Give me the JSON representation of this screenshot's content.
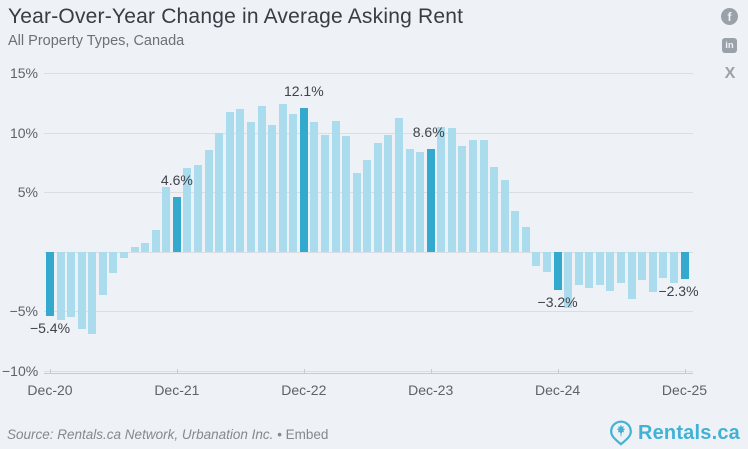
{
  "header": {
    "title": "Year-Over-Year Change in Average Asking Rent",
    "subtitle": "All Property Types, Canada"
  },
  "social": {
    "facebook_glyph": "f",
    "linkedin_glyph": "in",
    "x_glyph": "X"
  },
  "chart_data": {
    "type": "bar",
    "title": "Year-Over-Year Change in Average Asking Rent",
    "subtitle": "All Property Types, Canada",
    "xlabel": "",
    "ylabel": "",
    "ylim": [
      -10,
      15
    ],
    "grid": true,
    "bar_color": "#aadcee",
    "highlight_color": "#33a9cd",
    "x": [
      "Dec-20",
      "Jan-21",
      "Feb-21",
      "Mar-21",
      "Apr-21",
      "May-21",
      "Jun-21",
      "Jul-21",
      "Aug-21",
      "Sep-21",
      "Oct-21",
      "Nov-21",
      "Dec-21",
      "Jan-22",
      "Feb-22",
      "Mar-22",
      "Apr-22",
      "May-22",
      "Jun-22",
      "Jul-22",
      "Aug-22",
      "Sep-22",
      "Oct-22",
      "Nov-22",
      "Dec-22",
      "Jan-23",
      "Feb-23",
      "Mar-23",
      "Apr-23",
      "May-23",
      "Jun-23",
      "Jul-23",
      "Aug-23",
      "Sep-23",
      "Oct-23",
      "Nov-23",
      "Dec-23",
      "Jan-24",
      "Feb-24",
      "Mar-24",
      "Apr-24",
      "May-24",
      "Jun-24",
      "Jul-24",
      "Aug-24",
      "Sep-24",
      "Oct-24",
      "Nov-24",
      "Dec-24",
      "Jan-25",
      "Feb-25",
      "Mar-25",
      "Apr-25",
      "May-25",
      "Jun-25",
      "Jul-25",
      "Aug-25",
      "Sep-25",
      "Oct-25",
      "Nov-25",
      "Dec-25"
    ],
    "values": [
      -5.4,
      -5.7,
      -5.5,
      -6.5,
      -6.9,
      -3.6,
      -1.8,
      -0.5,
      0.4,
      0.7,
      1.8,
      5.4,
      4.6,
      7.0,
      7.3,
      8.5,
      10.0,
      11.7,
      12.0,
      10.9,
      12.2,
      10.6,
      12.4,
      11.6,
      12.1,
      10.9,
      9.8,
      11.0,
      9.7,
      6.6,
      7.7,
      9.1,
      9.8,
      11.2,
      8.6,
      8.4,
      8.6,
      10.5,
      10.4,
      8.9,
      9.4,
      9.4,
      7.1,
      6.0,
      3.4,
      2.1,
      -1.2,
      -1.7,
      -3.2,
      -4.7,
      -2.8,
      -3.0,
      -2.8,
      -3.3,
      -2.6,
      -4.0,
      -2.4,
      -3.4,
      -2.2,
      -2.6,
      -2.3
    ],
    "highlighted_indices": [
      0,
      12,
      24,
      36,
      48,
      60
    ],
    "data_labels": [
      {
        "index": 0,
        "text": "−5.4%",
        "dx": 0
      },
      {
        "index": 12,
        "text": "4.6%",
        "dx": 0
      },
      {
        "index": 24,
        "text": "12.1%",
        "dx": 0
      },
      {
        "index": 36,
        "text": "8.6%",
        "dx": -2
      },
      {
        "index": 48,
        "text": "−3.2%",
        "dx": 0
      },
      {
        "index": 60,
        "text": "−2.3%",
        "dx": -6
      }
    ],
    "y_ticks": [
      {
        "value": 15,
        "label": "15%"
      },
      {
        "value": 10,
        "label": "10%"
      },
      {
        "value": 5,
        "label": "5%"
      },
      {
        "value": 0,
        "label": ""
      },
      {
        "value": -5,
        "label": "−5%"
      },
      {
        "value": -10,
        "label": "−10%"
      }
    ],
    "x_ticks": [
      {
        "index": 0,
        "label": "Dec-20"
      },
      {
        "index": 12,
        "label": "Dec-21"
      },
      {
        "index": 24,
        "label": "Dec-22"
      },
      {
        "index": 36,
        "label": "Dec-23"
      },
      {
        "index": 48,
        "label": "Dec-24"
      },
      {
        "index": 60,
        "label": "Dec-25"
      }
    ],
    "legend": "none"
  },
  "footer": {
    "source_text": "Source: Rentals.ca Network, Urbanation Inc.",
    "separator": " • ",
    "embed_label": "Embed",
    "logo_text": "Rentals.ca"
  }
}
